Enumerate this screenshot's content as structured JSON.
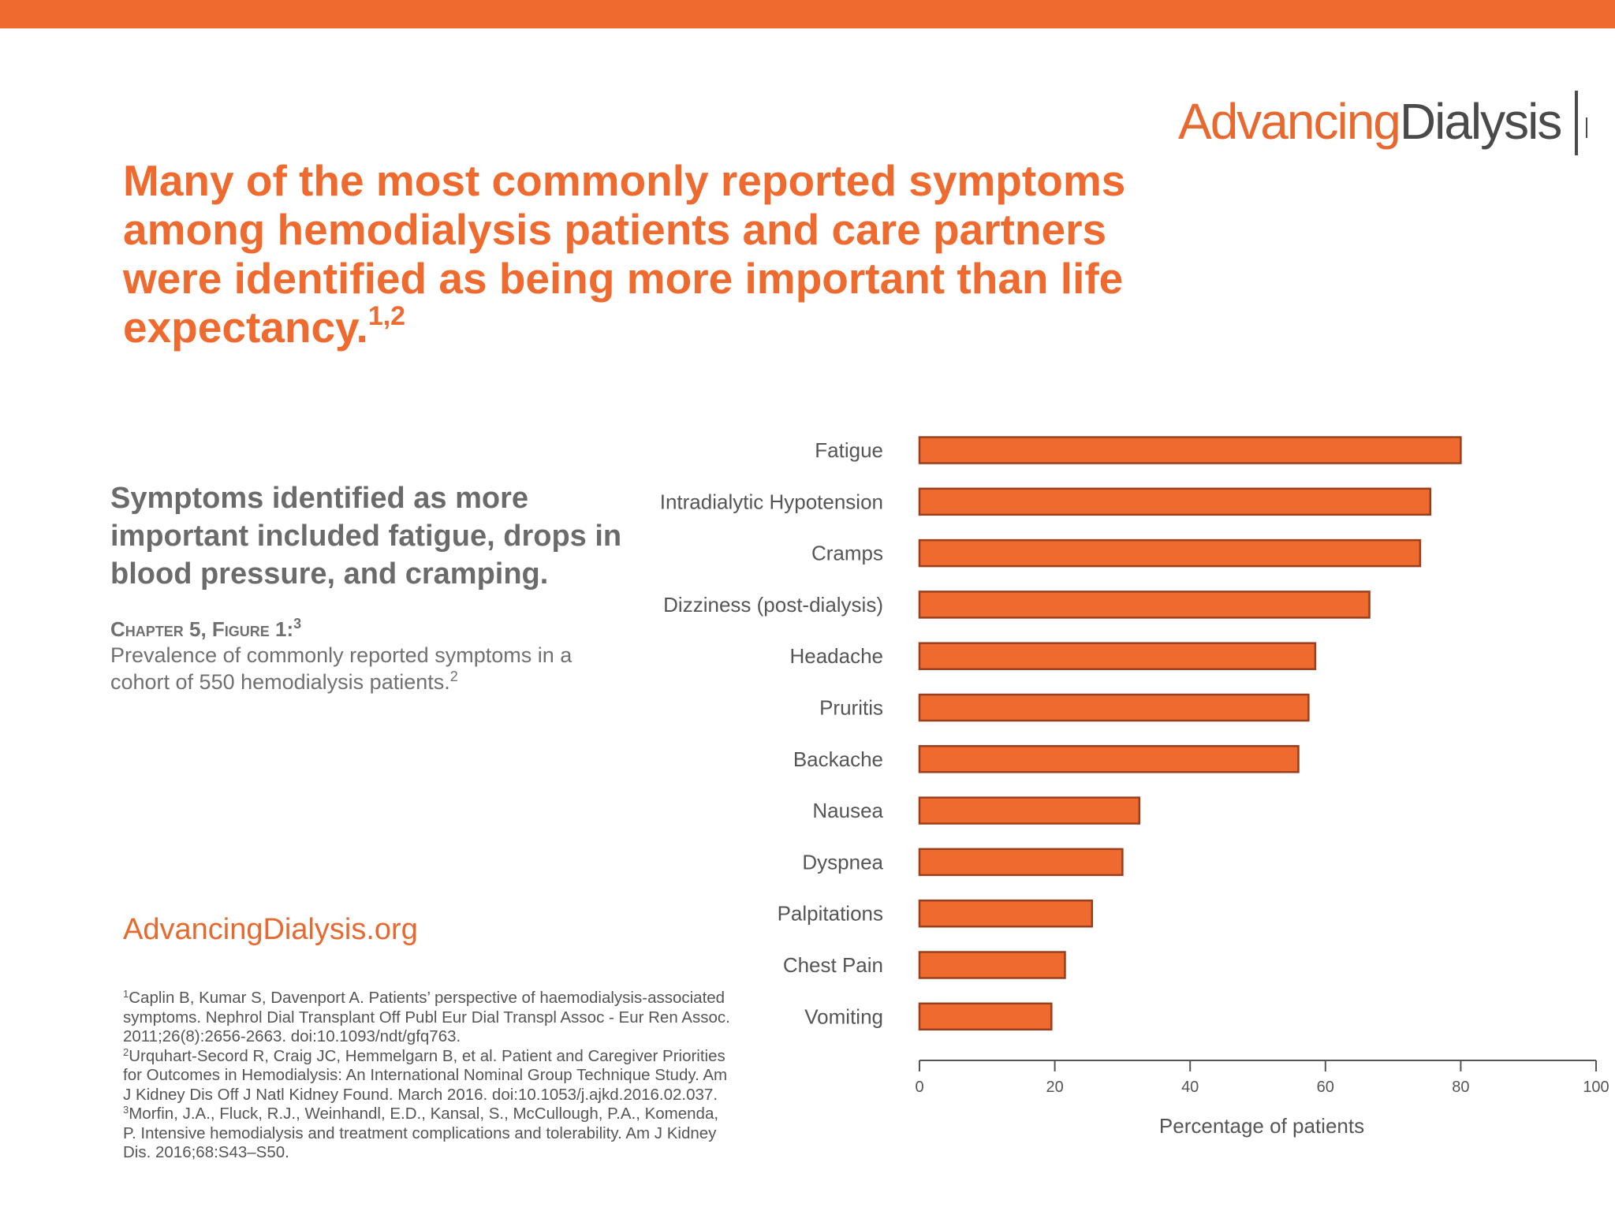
{
  "header": {
    "accent_color": "#ee6a2f"
  },
  "logo": {
    "advancing": "Advancing",
    "dialysis": "Dialysis"
  },
  "headline": {
    "text": "Many of the most commonly reported symptoms among hemodialysis patients and care partners were identified as being more important than life expectancy.",
    "superscript": "1,2"
  },
  "sidenote": "Symptoms identified as more important included fatigue, drops in blood pressure, and cramping.",
  "figure": {
    "label": "Chapter 5, Figure 1:",
    "label_superscript": "3",
    "caption": "Prevalence of commonly reported symptoms in a cohort of 550 hemodialysis patients.",
    "caption_superscript": "2"
  },
  "site_link": "AdvancingDialysis.org",
  "references": [
    {
      "num": "1",
      "text": "Caplin B, Kumar S, Davenport A. Patients’ perspective of haemodialysis-associated symptoms. Nephrol Dial Transplant Off Publ Eur Dial Transpl Assoc - Eur Ren Assoc. 2011;26(8):2656-2663. doi:10.1093/ndt/gfq763."
    },
    {
      "num": "2",
      "text": "Urquhart-Secord R, Craig JC, Hemmelgarn B, et al. Patient and Caregiver Priorities for Outcomes in Hemodialysis: An International Nominal Group Technique Study. Am J Kidney Dis Off J Natl Kidney Found. March 2016. doi:10.1053/j.ajkd.2016.02.037."
    },
    {
      "num": "3",
      "text": "Morfin, J.A., Fluck, R.J., Weinhandl, E.D., Kansal, S., McCullough, P.A., Komenda, P. Intensive hemodialysis and treatment complications and tolerability. Am J Kidney Dis. 2016;68:S43–S50."
    }
  ],
  "chart_data": {
    "type": "bar",
    "orientation": "horizontal",
    "categories": [
      "Fatigue",
      "Intradialytic Hypotension",
      "Cramps",
      "Dizziness (post-dialysis)",
      "Headache",
      "Pruritis",
      "Backache",
      "Nausea",
      "Dyspnea",
      "Palpitations",
      "Chest Pain",
      "Vomiting"
    ],
    "values": [
      80,
      75.5,
      74,
      66.5,
      58.5,
      57.5,
      56,
      32.5,
      30,
      25.5,
      21.5,
      19.5
    ],
    "xlabel": "Percentage of patients",
    "ylabel": "",
    "xlim": [
      0,
      100
    ],
    "xticks": [
      0,
      20,
      40,
      60,
      80,
      100
    ],
    "bar_color": "#ee6a2f",
    "bar_outline": "#9a3f1c",
    "grid": false
  }
}
